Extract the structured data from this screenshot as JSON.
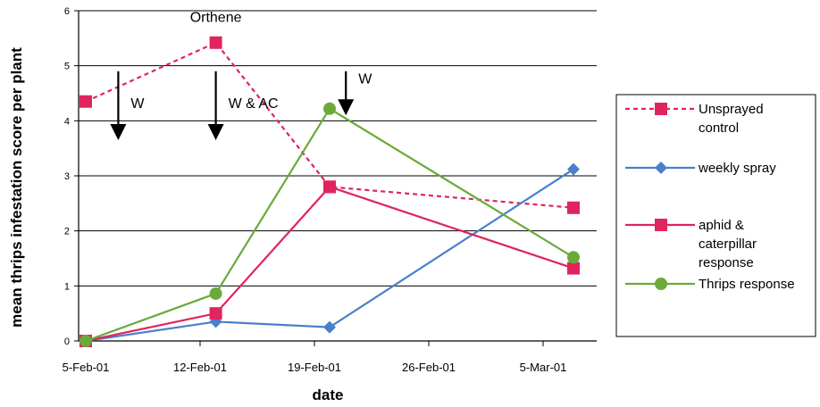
{
  "chart_data": {
    "type": "line",
    "xlabel": "date",
    "ylabel": "mean thrips infestation score per plant",
    "ylim": [
      0,
      6
    ],
    "yticks": [
      "0",
      "1",
      "2",
      "3",
      "4",
      "5",
      "6"
    ],
    "xticks": [
      "5-Feb-01",
      "12-Feb-01",
      "19-Feb-01",
      "26-Feb-01",
      "5-Mar-01"
    ],
    "grid": true,
    "legend_position": "right",
    "series": [
      {
        "name_lines": [
          "Unsprayed",
          "control"
        ],
        "color": "#e0245e",
        "dashed": true,
        "marker": "square",
        "x": [
          "2001-02-05",
          "2001-02-13",
          "2001-02-20",
          "2001-03-07"
        ],
        "values": [
          4.35,
          5.42,
          2.8,
          2.42
        ]
      },
      {
        "name_lines": [
          "weekly spray"
        ],
        "color": "#4a7fcc",
        "dashed": false,
        "marker": "diamond",
        "x": [
          "2001-02-05",
          "2001-02-13",
          "2001-02-20",
          "2001-03-07"
        ],
        "values": [
          0,
          0.35,
          0.25,
          3.12
        ]
      },
      {
        "name_lines": [
          "aphid &",
          "caterpillar",
          "response"
        ],
        "color": "#e0245e",
        "dashed": false,
        "marker": "square",
        "x": [
          "2001-02-05",
          "2001-02-13",
          "2001-02-20",
          "2001-03-07"
        ],
        "values": [
          0,
          0.5,
          2.8,
          1.32
        ]
      },
      {
        "name_lines": [
          "Thrips response"
        ],
        "color": "#6aaa3a",
        "dashed": false,
        "marker": "circle",
        "x": [
          "2001-02-05",
          "2001-02-13",
          "2001-02-20",
          "2001-03-07"
        ],
        "values": [
          0,
          0.86,
          4.22,
          1.52
        ]
      }
    ],
    "annotations": [
      {
        "text": "Orthene",
        "x": "2001-02-13",
        "y": 5.8
      },
      {
        "text": "W",
        "x": "2001-02-07",
        "y": 4.2,
        "arrow": true
      },
      {
        "text": "W & AC",
        "x": "2001-02-13",
        "y": 4.2,
        "arrow": true
      },
      {
        "text": "W",
        "x": "2001-02-21",
        "y": 4.65,
        "arrow": true
      }
    ]
  }
}
